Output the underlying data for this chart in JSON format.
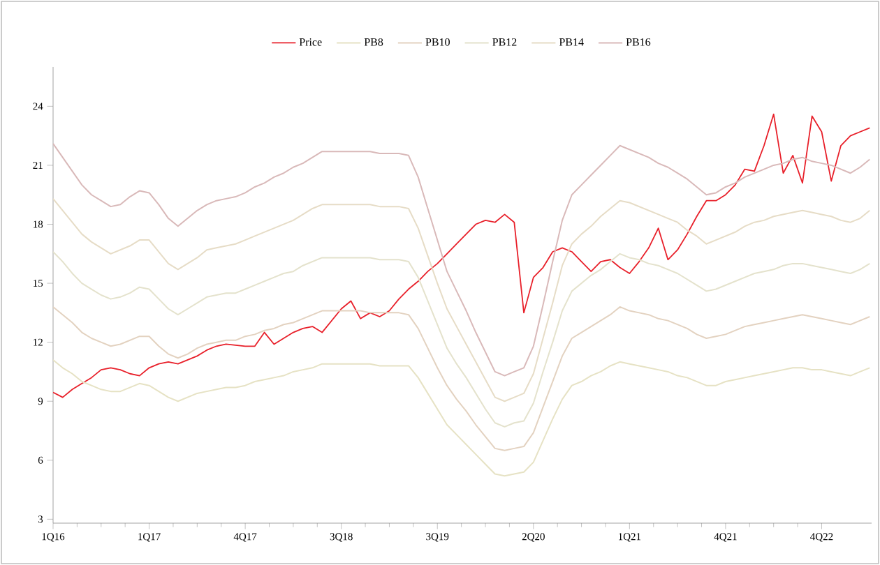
{
  "chart_data": {
    "type": "line",
    "legend": "top",
    "ylim": [
      2.8,
      26
    ],
    "yticks": [
      3,
      6,
      9,
      12,
      15,
      18,
      21,
      24
    ],
    "categories": [
      "1Q16",
      null,
      null,
      null,
      null,
      null,
      null,
      null,
      null,
      null,
      "1Q17",
      null,
      null,
      null,
      null,
      null,
      null,
      null,
      null,
      null,
      "4Q17",
      null,
      null,
      null,
      null,
      null,
      null,
      null,
      null,
      null,
      "3Q18",
      null,
      null,
      null,
      null,
      null,
      null,
      null,
      null,
      null,
      "3Q19",
      null,
      null,
      null,
      null,
      null,
      null,
      null,
      null,
      null,
      "2Q20",
      null,
      null,
      null,
      null,
      null,
      null,
      null,
      null,
      null,
      "1Q21",
      null,
      null,
      null,
      null,
      null,
      null,
      null,
      null,
      null,
      "4Q21",
      null,
      null,
      null,
      null,
      null,
      null,
      null,
      null,
      null,
      "4Q22",
      null,
      null,
      null,
      null,
      null
    ],
    "series": [
      {
        "name": "Price",
        "color": "#e8202a",
        "values": [
          9.45,
          9.2,
          9.6,
          9.9,
          10.2,
          10.6,
          10.7,
          10.6,
          10.4,
          10.3,
          10.7,
          10.9,
          11.0,
          10.9,
          11.1,
          11.3,
          11.6,
          11.8,
          11.9,
          11.85,
          11.8,
          11.8,
          12.5,
          11.9,
          12.2,
          12.5,
          12.7,
          12.8,
          12.5,
          13.1,
          13.7,
          14.1,
          13.2,
          13.5,
          13.3,
          13.6,
          14.2,
          14.7,
          15.1,
          15.6,
          16.0,
          16.5,
          17.0,
          17.5,
          18.0,
          18.2,
          18.1,
          18.5,
          18.1,
          13.5,
          15.3,
          15.8,
          16.6,
          16.8,
          16.6,
          16.1,
          15.6,
          16.1,
          16.2,
          15.8,
          15.5,
          16.1,
          16.8,
          17.8,
          16.2,
          16.7,
          17.5,
          18.4,
          19.2,
          19.2,
          19.5,
          20.0,
          20.8,
          20.7,
          22.0,
          23.6,
          20.6,
          21.5,
          20.1,
          23.5,
          22.7,
          20.2,
          22.0,
          22.5,
          22.7,
          22.9
        ]
      },
      {
        "name": "PB8",
        "color": "#e6e2c4",
        "values": [
          11.1,
          10.7,
          10.4,
          10.0,
          9.8,
          9.6,
          9.5,
          9.5,
          9.7,
          9.9,
          9.8,
          9.5,
          9.2,
          9.0,
          9.2,
          9.4,
          9.5,
          9.6,
          9.7,
          9.7,
          9.8,
          10.0,
          10.1,
          10.2,
          10.3,
          10.5,
          10.6,
          10.7,
          10.9,
          10.9,
          10.9,
          10.9,
          10.9,
          10.9,
          10.8,
          10.8,
          10.8,
          10.8,
          10.2,
          9.4,
          8.6,
          7.8,
          7.3,
          6.8,
          6.3,
          5.8,
          5.3,
          5.2,
          5.3,
          5.4,
          5.9,
          7.0,
          8.1,
          9.1,
          9.8,
          10.0,
          10.3,
          10.5,
          10.8,
          11.0,
          10.9,
          10.8,
          10.7,
          10.6,
          10.5,
          10.3,
          10.2,
          10.0,
          9.8,
          9.8,
          10.0,
          10.1,
          10.2,
          10.3,
          10.4,
          10.5,
          10.6,
          10.7,
          10.7,
          10.6,
          10.6,
          10.5,
          10.4,
          10.3,
          10.5,
          10.7
        ]
      },
      {
        "name": "PB10",
        "color": "#e3d2c0",
        "values": [
          13.8,
          13.4,
          13.0,
          12.5,
          12.2,
          12.0,
          11.8,
          11.9,
          12.1,
          12.3,
          12.3,
          11.8,
          11.4,
          11.2,
          11.4,
          11.7,
          11.9,
          12.0,
          12.1,
          12.1,
          12.3,
          12.4,
          12.6,
          12.7,
          12.9,
          13.0,
          13.2,
          13.4,
          13.6,
          13.6,
          13.6,
          13.6,
          13.6,
          13.5,
          13.5,
          13.5,
          13.5,
          13.4,
          12.7,
          11.7,
          10.7,
          9.8,
          9.1,
          8.5,
          7.8,
          7.2,
          6.6,
          6.5,
          6.6,
          6.7,
          7.4,
          8.7,
          10.0,
          11.3,
          12.2,
          12.5,
          12.8,
          13.1,
          13.4,
          13.8,
          13.6,
          13.5,
          13.4,
          13.2,
          13.1,
          12.9,
          12.7,
          12.4,
          12.2,
          12.3,
          12.4,
          12.6,
          12.8,
          12.9,
          13.0,
          13.1,
          13.2,
          13.3,
          13.4,
          13.3,
          13.2,
          13.1,
          13.0,
          12.9,
          13.1,
          13.3
        ]
      },
      {
        "name": "PB12",
        "color": "#e4e2cc",
        "values": [
          16.6,
          16.1,
          15.5,
          15.0,
          14.7,
          14.4,
          14.2,
          14.3,
          14.5,
          14.8,
          14.7,
          14.2,
          13.7,
          13.4,
          13.7,
          14.0,
          14.3,
          14.4,
          14.5,
          14.5,
          14.7,
          14.9,
          15.1,
          15.3,
          15.5,
          15.6,
          15.9,
          16.1,
          16.3,
          16.3,
          16.3,
          16.3,
          16.3,
          16.3,
          16.2,
          16.2,
          16.2,
          16.1,
          15.3,
          14.1,
          12.9,
          11.7,
          10.9,
          10.2,
          9.4,
          8.6,
          7.9,
          7.7,
          7.9,
          8.0,
          8.9,
          10.5,
          12.0,
          13.6,
          14.6,
          15.0,
          15.4,
          15.7,
          16.1,
          16.5,
          16.3,
          16.2,
          16.0,
          15.9,
          15.7,
          15.5,
          15.2,
          14.9,
          14.6,
          14.7,
          14.9,
          15.1,
          15.3,
          15.5,
          15.6,
          15.7,
          15.9,
          16.0,
          16.0,
          15.9,
          15.8,
          15.7,
          15.6,
          15.5,
          15.7,
          16.0
        ]
      },
      {
        "name": "PB14",
        "color": "#e6dcc6",
        "values": [
          19.3,
          18.7,
          18.1,
          17.5,
          17.1,
          16.8,
          16.5,
          16.7,
          16.9,
          17.2,
          17.2,
          16.6,
          16.0,
          15.7,
          16.0,
          16.3,
          16.7,
          16.8,
          16.9,
          17.0,
          17.2,
          17.4,
          17.6,
          17.8,
          18.0,
          18.2,
          18.5,
          18.8,
          19.0,
          19.0,
          19.0,
          19.0,
          19.0,
          19.0,
          18.9,
          18.9,
          18.9,
          18.8,
          17.8,
          16.4,
          15.0,
          13.7,
          12.8,
          11.9,
          11.0,
          10.1,
          9.2,
          9.0,
          9.2,
          9.4,
          10.4,
          12.2,
          14.0,
          15.9,
          17.0,
          17.5,
          17.9,
          18.4,
          18.8,
          19.2,
          19.1,
          18.9,
          18.7,
          18.5,
          18.3,
          18.1,
          17.7,
          17.4,
          17.0,
          17.2,
          17.4,
          17.6,
          17.9,
          18.1,
          18.2,
          18.4,
          18.5,
          18.6,
          18.7,
          18.6,
          18.5,
          18.4,
          18.2,
          18.1,
          18.3,
          18.7
        ]
      },
      {
        "name": "PB16",
        "color": "#d9b9b9",
        "values": [
          22.1,
          21.4,
          20.7,
          20.0,
          19.5,
          19.2,
          18.9,
          19.0,
          19.4,
          19.7,
          19.6,
          19.0,
          18.3,
          17.9,
          18.3,
          18.7,
          19.0,
          19.2,
          19.3,
          19.4,
          19.6,
          19.9,
          20.1,
          20.4,
          20.6,
          20.9,
          21.1,
          21.4,
          21.7,
          21.7,
          21.7,
          21.7,
          21.7,
          21.7,
          21.6,
          21.6,
          21.6,
          21.5,
          20.4,
          18.8,
          17.2,
          15.6,
          14.6,
          13.6,
          12.5,
          11.5,
          10.5,
          10.3,
          10.5,
          10.7,
          11.8,
          13.9,
          16.1,
          18.2,
          19.5,
          20.0,
          20.5,
          21.0,
          21.5,
          22.0,
          21.8,
          21.6,
          21.4,
          21.1,
          20.9,
          20.6,
          20.3,
          19.9,
          19.5,
          19.6,
          19.9,
          20.1,
          20.4,
          20.6,
          20.8,
          21.0,
          21.1,
          21.3,
          21.4,
          21.2,
          21.1,
          21.0,
          20.8,
          20.6,
          20.9,
          21.3
        ]
      }
    ]
  }
}
